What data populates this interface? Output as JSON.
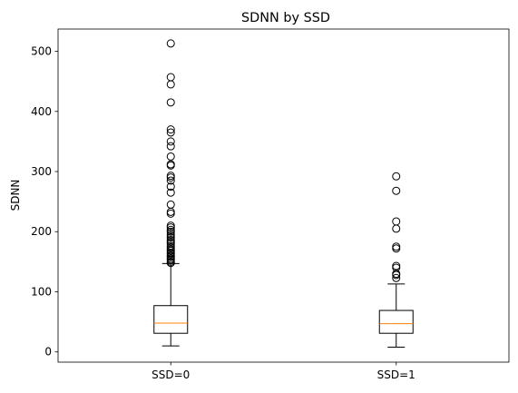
{
  "chart_data": {
    "type": "box",
    "title": "SDNN by SSD",
    "xlabel": "",
    "ylabel": "SDNN",
    "categories": [
      "SSD=0",
      "SSD=1"
    ],
    "ylim": [
      -17,
      537
    ],
    "yticks": [
      0,
      100,
      200,
      300,
      400,
      500
    ],
    "ytick_labels": [
      "0",
      "100",
      "200",
      "300",
      "400",
      "500"
    ],
    "grid": false,
    "colors": {
      "box": "#000000",
      "median": "#ff7f0e",
      "outlier": "#000000"
    },
    "boxes": [
      {
        "name": "SSD=0",
        "whisker_low": 10,
        "q1": 31,
        "median": 48,
        "q3": 77,
        "whisker_high": 147,
        "outliers": [
          148,
          150,
          153,
          155,
          158,
          160,
          163,
          165,
          168,
          170,
          173,
          176,
          180,
          183,
          186,
          190,
          193,
          196,
          200,
          203,
          207,
          210,
          230,
          233,
          245,
          265,
          275,
          285,
          290,
          293,
          310,
          312,
          325,
          342,
          350,
          365,
          370,
          415,
          445,
          457,
          513
        ]
      },
      {
        "name": "SSD=1",
        "whisker_low": 8,
        "q1": 31,
        "median": 47,
        "q3": 69,
        "whisker_high": 113,
        "outliers": [
          123,
          128,
          130,
          140,
          143,
          172,
          175,
          205,
          217,
          268,
          292
        ]
      }
    ]
  }
}
